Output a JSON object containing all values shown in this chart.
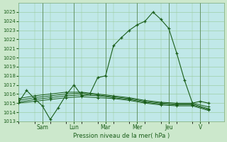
{
  "background_color": "#cce8cc",
  "plot_bg_color": "#c0e8e8",
  "grid_color": "#96c896",
  "line_color": "#1a5e1a",
  "xlabel": "Pression niveau de la mer( hPa )",
  "ylim": [
    1013,
    1026
  ],
  "yticks": [
    1013,
    1014,
    1015,
    1016,
    1017,
    1018,
    1019,
    1020,
    1021,
    1022,
    1023,
    1024,
    1025
  ],
  "day_labels": [
    "Sam",
    "Lun",
    "Mar",
    "Mer",
    "Jeu",
    "V"
  ],
  "day_positions": [
    1.5,
    3.5,
    5.5,
    7.5,
    9.5,
    11.5
  ],
  "xlim": [
    0,
    13
  ],
  "series1_x": [
    0,
    0.5,
    1.0,
    1.5,
    2.0,
    2.5,
    3.0,
    3.5,
    4.0,
    4.5,
    5.0,
    5.5,
    6.0,
    6.5,
    7.0,
    7.5,
    8.0,
    8.5,
    9.0,
    9.5,
    10.0,
    10.5,
    11.0,
    11.5,
    12.0
  ],
  "series1_y": [
    1015.1,
    1016.4,
    1015.5,
    1014.7,
    1013.2,
    1014.5,
    1015.9,
    1017.0,
    1015.8,
    1016.0,
    1017.8,
    1018.0,
    1021.3,
    1022.2,
    1023.0,
    1023.6,
    1024.0,
    1025.0,
    1024.2,
    1023.2,
    1020.5,
    1017.5,
    1015.0,
    1015.2,
    1015.0
  ],
  "series2_x": [
    0,
    1,
    2,
    3,
    4,
    5,
    6,
    7,
    8,
    9,
    10,
    11,
    12
  ],
  "series2_y": [
    1015.5,
    1015.8,
    1016.0,
    1016.2,
    1016.2,
    1016.0,
    1015.8,
    1015.6,
    1015.3,
    1015.1,
    1015.0,
    1015.0,
    1014.6
  ],
  "series3_x": [
    0,
    1,
    2,
    3,
    4,
    5,
    6,
    7,
    8,
    9,
    10,
    11,
    12
  ],
  "series3_y": [
    1015.3,
    1015.6,
    1015.8,
    1016.0,
    1016.1,
    1015.9,
    1015.7,
    1015.5,
    1015.2,
    1015.0,
    1014.9,
    1014.9,
    1014.4
  ],
  "series4_x": [
    0,
    1,
    2,
    3,
    4,
    5,
    6,
    7,
    8,
    9,
    10,
    11,
    12
  ],
  "series4_y": [
    1015.1,
    1015.4,
    1015.6,
    1015.8,
    1015.9,
    1015.8,
    1015.6,
    1015.4,
    1015.1,
    1014.9,
    1014.8,
    1014.8,
    1014.3
  ],
  "series5_x": [
    0,
    1,
    2,
    3,
    4,
    5,
    6,
    7,
    8,
    9,
    10,
    11,
    12
  ],
  "series5_y": [
    1015.0,
    1015.2,
    1015.4,
    1015.6,
    1015.7,
    1015.6,
    1015.5,
    1015.3,
    1015.0,
    1014.8,
    1014.7,
    1014.7,
    1014.2
  ]
}
